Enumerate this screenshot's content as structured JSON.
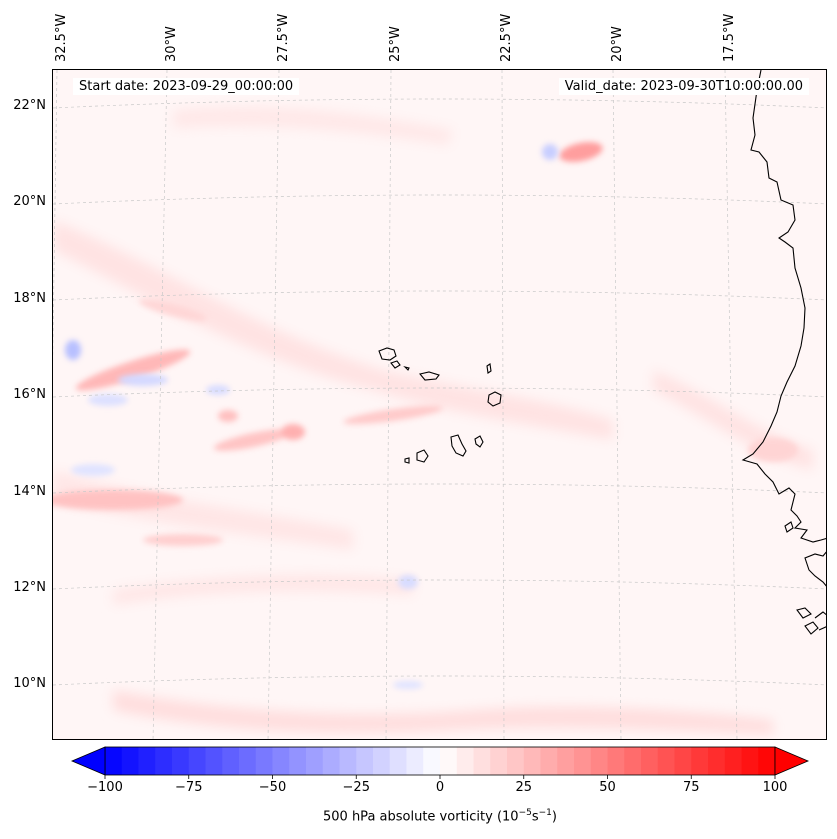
{
  "map": {
    "start_date": "Start date: 2023-09-29_00:00:00",
    "valid_date": "Valid_date: 2023-09-30T10:00:00.00",
    "lon_labels": [
      "32.5°W",
      "30°W",
      "27.5°W",
      "25°W",
      "22.5°W",
      "20°W",
      "17.5°W"
    ],
    "lat_labels": [
      "22°N",
      "20°N",
      "18°N",
      "16°N",
      "14°N",
      "12°N",
      "10°N"
    ],
    "features": [
      "Cape Verde islands",
      "West African coastline"
    ]
  },
  "colorbar": {
    "ticks": [
      "−100",
      "−75",
      "−50",
      "−25",
      "0",
      "25",
      "50",
      "75",
      "100"
    ],
    "label_prefix": "500 hPa absolute vorticity (10",
    "label_exp1": "−5",
    "label_mid": "s",
    "label_exp2": "−1",
    "label_suffix": ")",
    "min": -100,
    "max": 100,
    "cmap": "bwr",
    "colors": {
      "neg": "#0000ff",
      "zero": "#ffffff",
      "pos": "#ff0000"
    }
  }
}
